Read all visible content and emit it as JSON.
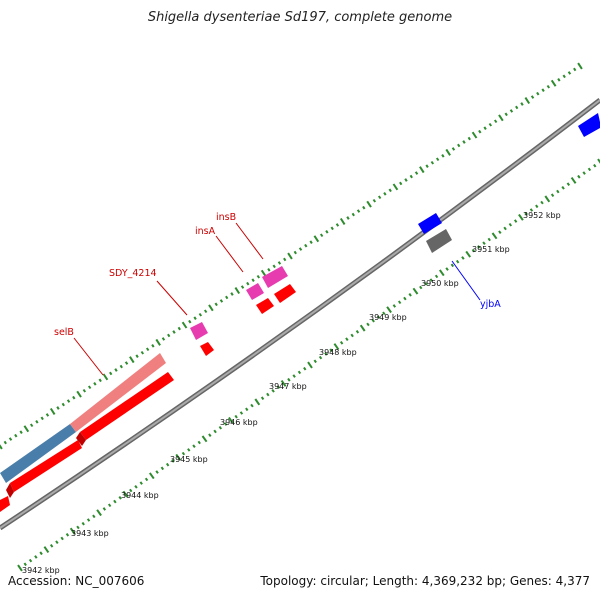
{
  "title": "Shigella dysenteriae Sd197, complete genome",
  "footer": {
    "accession": "Accession: NC_007606",
    "summary": "Topology: circular; Length: 4,369,232 bp; Genes: 4,377"
  },
  "colors": {
    "tick_green": "#2e8b2e",
    "backbone": "#808080",
    "cds_red": "#ff0000",
    "label_red": "#cc0000",
    "gene_pink": "#e63cb0",
    "rrna_salmon": "#f08080",
    "rrna_steelblue": "#4a7eaa",
    "gene_blue": "#0000ff",
    "gene_gray": "#666666"
  },
  "scale_labels": [
    "3942 kbp",
    "3943 kbp",
    "3944 kbp",
    "3945 kbp",
    "3946 kbp",
    "3947 kbp",
    "3948 kbp",
    "3949 kbp",
    "3950 kbp",
    "3951 kbp",
    "3952 kbp"
  ],
  "gene_labels": {
    "selB": "selB",
    "sdy4214": "SDY_4214",
    "insA": "insA",
    "insB": "insB",
    "yjbA": "yjbA"
  }
}
